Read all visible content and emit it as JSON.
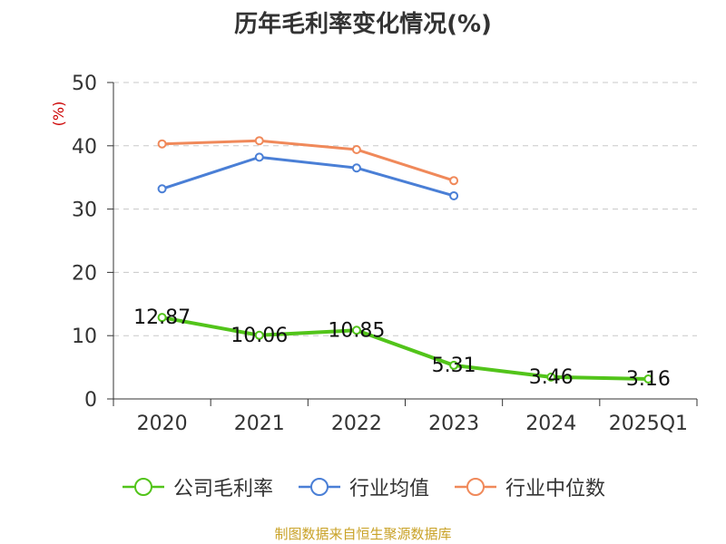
{
  "chart_data": {
    "type": "line",
    "title": "历年毛利率变化情况(%)",
    "ylabel": "(%)",
    "xlabel": "",
    "categories": [
      "2020",
      "2021",
      "2022",
      "2023",
      "2024",
      "2025Q1"
    ],
    "ylim": [
      0,
      50
    ],
    "yticks": [
      "0",
      "10",
      "20",
      "30",
      "40",
      "50"
    ],
    "grid": true,
    "legend_position": "bottom",
    "series": [
      {
        "name": "公司毛利率",
        "color": "#52c41a",
        "values": [
          12.87,
          10.06,
          10.85,
          5.31,
          3.46,
          3.16
        ],
        "labels": [
          "12.87",
          "10.06",
          "10.85",
          "5.31",
          "3.46",
          "3.16"
        ]
      },
      {
        "name": "行业均值",
        "color": "#4a7fd6",
        "values": [
          33.2,
          38.2,
          36.5,
          32.1,
          null,
          null
        ]
      },
      {
        "name": "行业中位数",
        "color": "#f0895a",
        "values": [
          40.3,
          40.8,
          39.4,
          34.5,
          null,
          null
        ]
      }
    ]
  },
  "source": "制图数据来自恒生聚源数据库"
}
